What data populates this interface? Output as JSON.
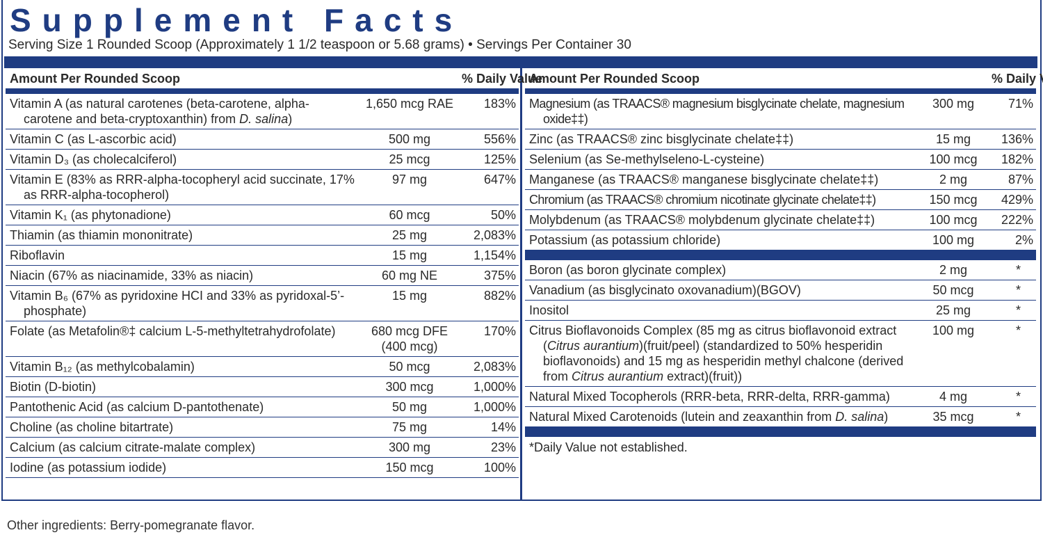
{
  "title": "Supplement Facts",
  "serving": "Serving Size 1 Rounded Scoop (Approximately 1 1/2 teaspoon or 5.68 grams) • Servings Per Container 30",
  "left": {
    "header": {
      "amount": "Amount Per Rounded Scoop",
      "dv": "% Daily Value"
    },
    "rows": [
      {
        "name": [
          {
            "text": "Vitamin A (as natural carotenes (beta-carotene, alpha-carotene and beta-cryptoxanthin) from "
          },
          {
            "text": "D. salina",
            "italic": true
          },
          {
            "text": ")"
          }
        ],
        "amount": "1,650 mcg RAE",
        "dv": "183%"
      },
      {
        "name": "Vitamin C (as L-ascorbic acid)",
        "amount": "500 mg",
        "dv": "556%"
      },
      {
        "name": "Vitamin D₃ (as cholecalciferol)",
        "amount": "25 mcg",
        "dv": "125%"
      },
      {
        "name": "Vitamin E (83% as RRR-alpha-tocopheryl acid succinate, 17% as RRR-alpha-tocopherol)",
        "amount": "97 mg",
        "dv": "647%"
      },
      {
        "name": "Vitamin K₁ (as phytonadione)",
        "amount": "60 mcg",
        "dv": "50%"
      },
      {
        "name": "Thiamin (as thiamin mononitrate)",
        "amount": "25 mg",
        "dv": "2,083%"
      },
      {
        "name": "Riboflavin",
        "amount": "15 mg",
        "dv": "1,154%"
      },
      {
        "name": "Niacin (67% as niacinamide, 33% as niacin)",
        "amount": "60 mg NE",
        "dv": "375%"
      },
      {
        "name": "Vitamin B₆ (67% as pyridoxine HCI and 33% as pyridoxal-5’-phosphate)",
        "amount": "15 mg",
        "dv": "882%"
      },
      {
        "name": "Folate (as Metafolin®‡ calcium L-5-methyltetrahydrofolate)",
        "amount": "680 mcg DFE (400 mcg)",
        "dv": "170%"
      },
      {
        "name": "Vitamin B₁₂ (as methylcobalamin)",
        "amount": "50 mcg",
        "dv": "2,083%"
      },
      {
        "name": "Biotin (D-biotin)",
        "amount": "300 mcg",
        "dv": "1,000%"
      },
      {
        "name": "Pantothenic Acid (as calcium D-pantothenate)",
        "amount": "50 mg",
        "dv": "1,000%"
      },
      {
        "name": "Choline (as choline bitartrate)",
        "amount": "75 mg",
        "dv": "14%"
      },
      {
        "name": "Calcium (as calcium citrate-malate complex)",
        "amount": "300 mg",
        "dv": "23%"
      },
      {
        "name": "Iodine (as potassium iodide)",
        "amount": "150 mcg",
        "dv": "100%"
      }
    ]
  },
  "right": {
    "header": {
      "amount": "Amount Per Rounded Scoop",
      "dv": "% Daily Value"
    },
    "groups": [
      {
        "rows": [
          {
            "name": "Magnesium (as TRAACS® magnesium bisglycinate chelate, magnesium oxide‡‡)",
            "amount": "300 mg",
            "dv": "71%"
          },
          {
            "name": "Zinc (as TRAACS® zinc bisglycinate chelate‡‡)",
            "amount": "15 mg",
            "dv": "136%"
          },
          {
            "name": "Selenium (as Se-methylseleno-L-cysteine)",
            "amount": "100 mcg",
            "dv": "182%"
          },
          {
            "name": "Manganese (as TRAACS® manganese bisglycinate chelate‡‡)",
            "amount": "2 mg",
            "dv": "87%"
          },
          {
            "name": "Chromium (as TRAACS® chromium nicotinate glycinate chelate‡‡)",
            "amount": "150 mcg",
            "dv": "429%"
          },
          {
            "name": "Molybdenum (as TRAACS® molybdenum glycinate chelate‡‡)",
            "amount": "100 mcg",
            "dv": "222%"
          },
          {
            "name": "Potassium (as potassium chloride)",
            "amount": "100 mg",
            "dv": "2%"
          }
        ]
      },
      {
        "rows": [
          {
            "name": "Boron (as boron glycinate complex)",
            "amount": "2 mg",
            "dv": "*"
          },
          {
            "name": "Vanadium (as bisglycinato oxovanadium)(BGOV)",
            "amount": "50 mcg",
            "dv": "*"
          },
          {
            "name": "Inositol",
            "amount": "25 mg",
            "dv": "*"
          },
          {
            "name": [
              {
                "text": "Citrus Bioflavonoids Complex (85 mg as citrus bioflavonoid extract ("
              },
              {
                "text": "Citrus aurantium",
                "italic": true
              },
              {
                "text": ")(fruit/peel) (standardized to 50% hesperidin bioflavonoids) and 15 mg as hesperidin methyl chalcone (derived from "
              },
              {
                "text": "Citrus aurantium",
                "italic": true
              },
              {
                "text": " extract)(fruit))"
              }
            ],
            "amount": "100 mg",
            "dv": "*"
          },
          {
            "name": "Natural Mixed Tocopherols (RRR-beta, RRR-delta, RRR-gamma)",
            "amount": "4 mg",
            "dv": "*"
          },
          {
            "name": [
              {
                "text": "Natural Mixed Carotenoids (lutein and zeaxanthin from "
              },
              {
                "text": "D. salina",
                "italic": true
              },
              {
                "text": ")"
              }
            ],
            "amount": "35 mcg",
            "dv": "*"
          }
        ]
      }
    ],
    "footnote": "*Daily Value not established."
  },
  "other_ingredients": "Other ingredients: Berry-pomegranate flavor."
}
